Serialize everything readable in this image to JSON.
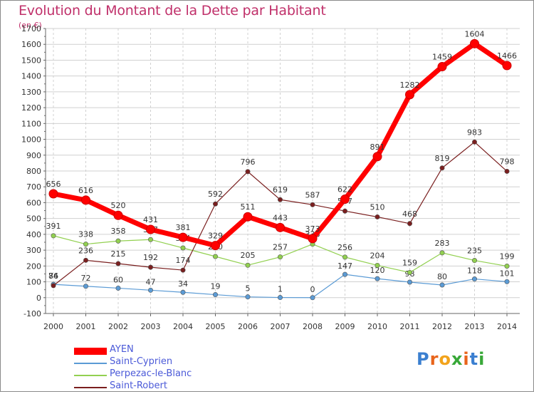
{
  "chart_data": {
    "type": "line",
    "title": "Evolution du Montant de la Dette par Habitant",
    "subtitle": "(en €)",
    "x": [
      "2000",
      "2001",
      "2002",
      "2003",
      "2004",
      "2005",
      "2006",
      "2007",
      "2008",
      "2009",
      "2010",
      "2011",
      "2012",
      "2013",
      "2014"
    ],
    "ylim": [
      -100,
      1700
    ],
    "yticks": [
      -100,
      0,
      100,
      200,
      300,
      400,
      500,
      600,
      700,
      800,
      900,
      1000,
      1100,
      1200,
      1300,
      1400,
      1500,
      1600,
      1700
    ],
    "grid": true,
    "legend_position": "bottom-left",
    "series": [
      {
        "name": "Saint-Cyprien",
        "color": "#5b9bd5",
        "values": [
          84,
          72,
          60,
          47,
          34,
          19,
          5,
          1,
          0,
          147,
          120,
          98,
          80,
          118,
          101
        ]
      },
      {
        "name": "Perpezac-le-Blanc",
        "color": "#92d050",
        "values": [
          391,
          338,
          358,
          367,
          314,
          260,
          205,
          257,
          338,
          256,
          204,
          159,
          283,
          235,
          199
        ]
      },
      {
        "name": "Saint-Robert",
        "color": "#7a1f1f",
        "values": [
          76,
          236,
          215,
          192,
          174,
          592,
          796,
          619,
          587,
          547,
          510,
          468,
          819,
          983,
          798
        ]
      },
      {
        "name": "AYEN",
        "color": "#ff0000",
        "values": [
          656,
          616,
          520,
          431,
          381,
          329,
          511,
          443,
          373,
          622,
          891,
          1282,
          1459,
          1604,
          1466
        ]
      }
    ]
  },
  "legend": [
    "AYEN",
    "Saint-Cyprien",
    "Perpezac-le-Blanc",
    "Saint-Robert"
  ],
  "logo": {
    "text": "Proxiti"
  }
}
